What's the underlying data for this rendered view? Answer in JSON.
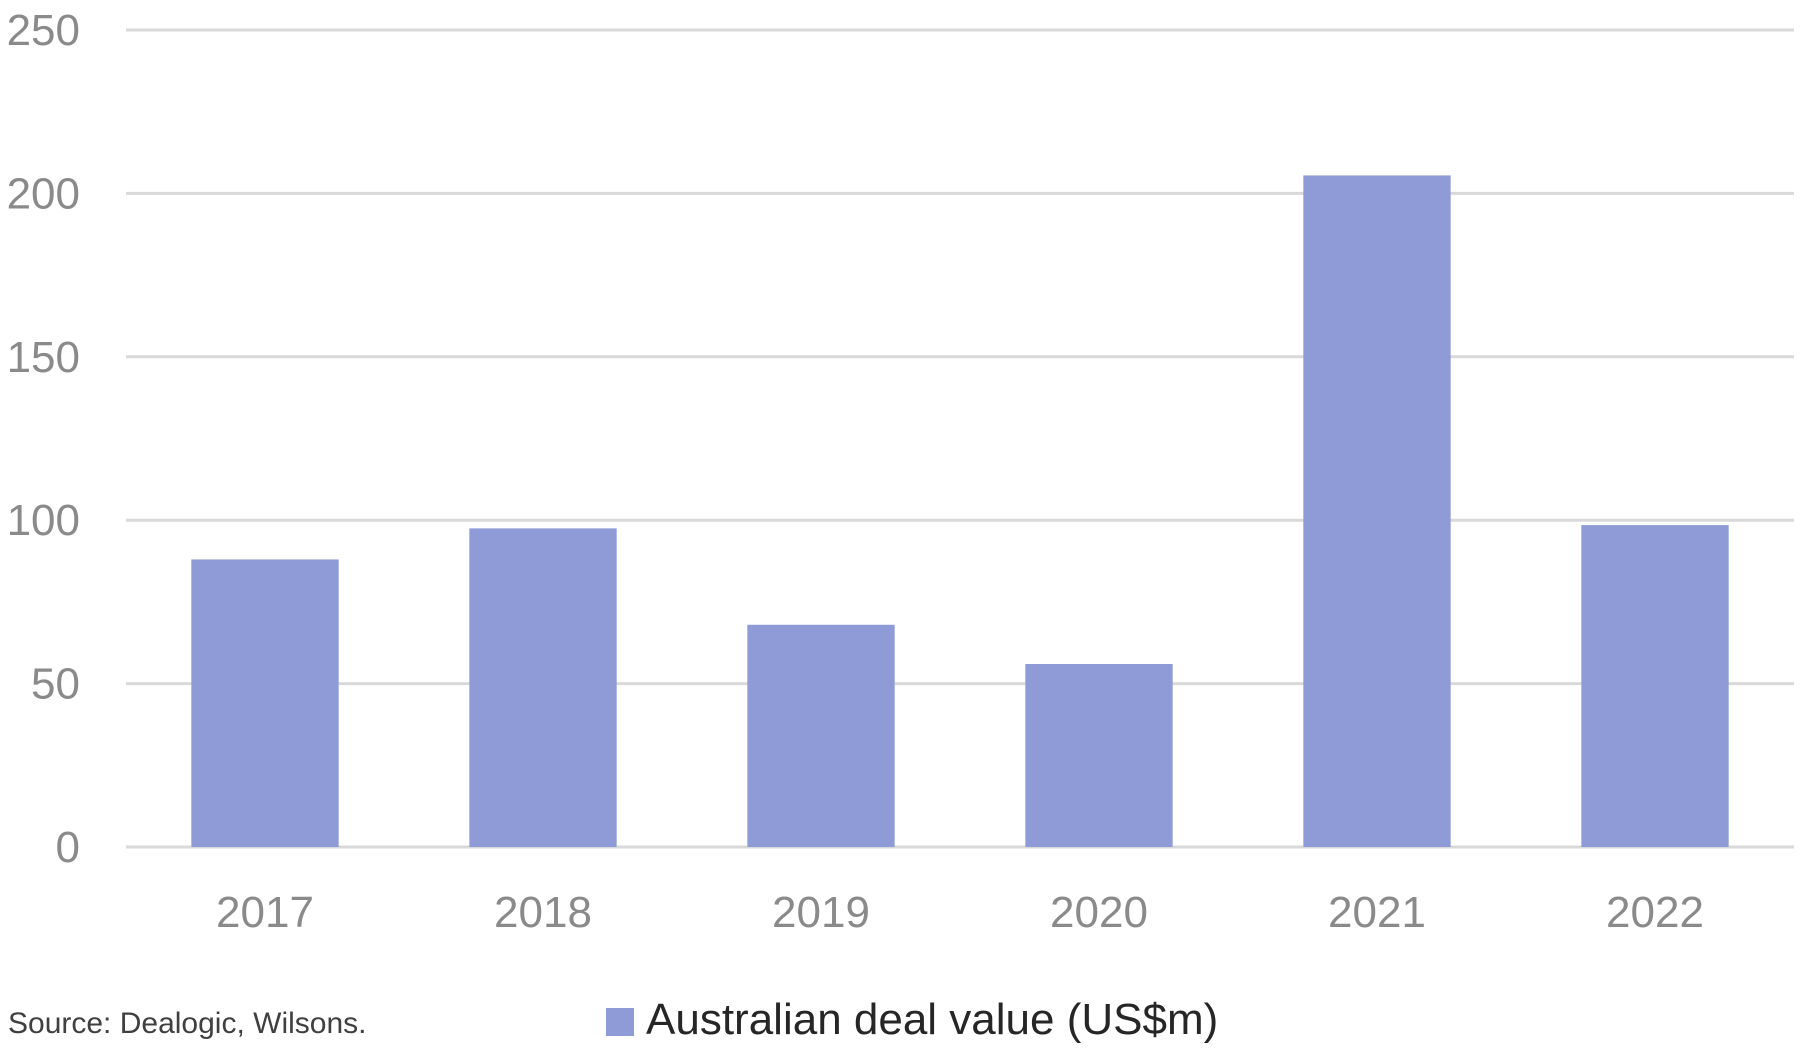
{
  "chart_data": {
    "type": "bar",
    "title": "",
    "xlabel": "",
    "ylabel": "",
    "categories": [
      "2017",
      "2018",
      "2019",
      "2020",
      "2021",
      "2022"
    ],
    "series": [
      {
        "name": "Australian deal value (US$m)",
        "values": [
          88,
          97.5,
          68,
          56,
          205.5,
          98.5
        ],
        "color": "#8e9bd6"
      }
    ],
    "ylim": [
      0,
      250
    ],
    "yticks": [
      "0",
      "50",
      "100",
      "150",
      "200",
      "250"
    ],
    "grid": true,
    "gridline_color": "#d9d9d9",
    "legend_position": "bottom-center",
    "source": "Source: Dealogic, Wilsons."
  }
}
